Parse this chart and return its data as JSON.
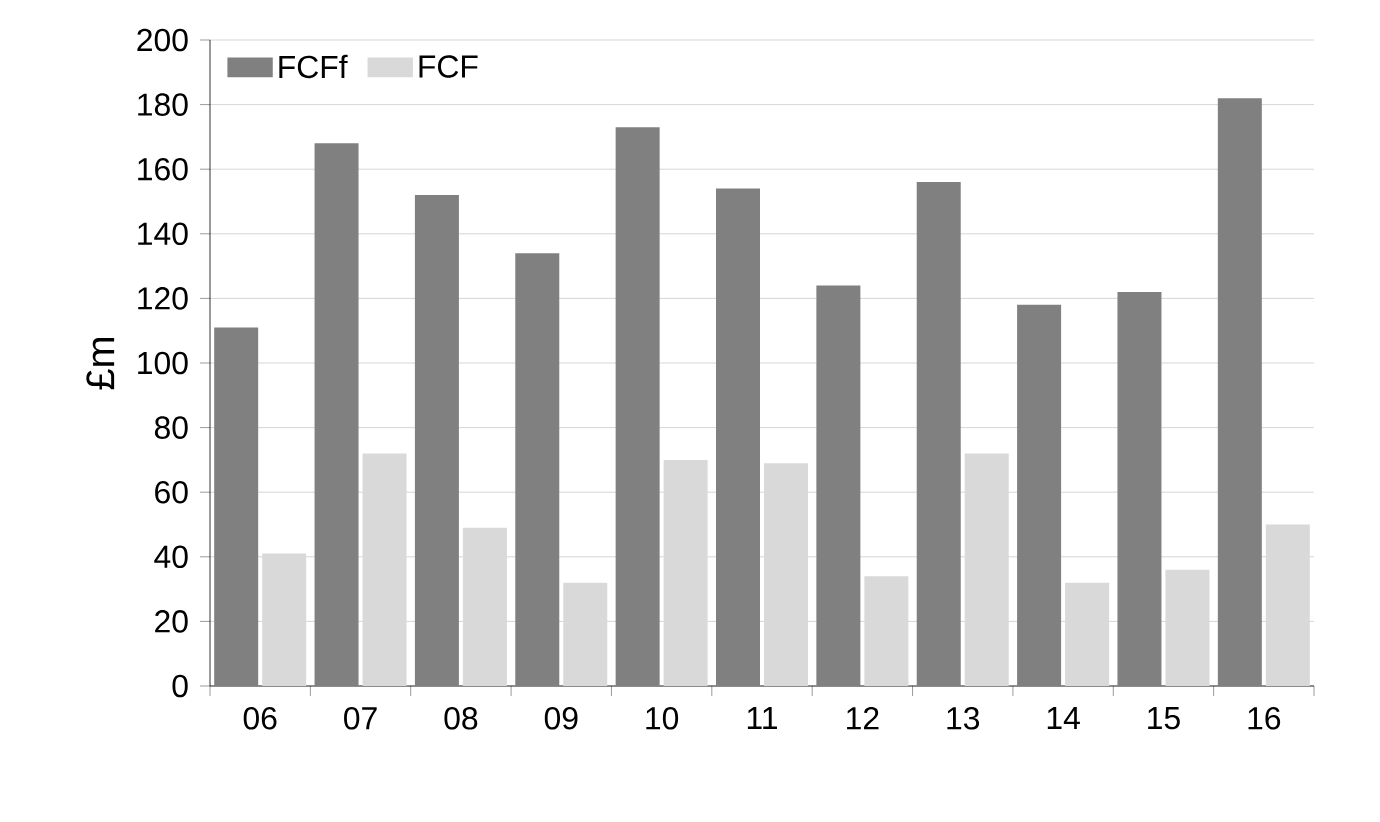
{
  "chart_data": {
    "type": "bar",
    "ylabel": "£m",
    "categories": [
      "06",
      "07",
      "08",
      "09",
      "10",
      "11",
      "12",
      "13",
      "14",
      "15",
      "16"
    ],
    "series": [
      {
        "name": "FCFf",
        "color": "#808080",
        "values": [
          111,
          168,
          152,
          134,
          173,
          154,
          124,
          156,
          118,
          122,
          182
        ]
      },
      {
        "name": "FCF",
        "color": "#d9d9d9",
        "values": [
          41,
          72,
          49,
          32,
          70,
          69,
          34,
          72,
          32,
          36,
          50
        ]
      }
    ],
    "ylim": [
      0,
      200
    ],
    "yticks": [
      0,
      20,
      40,
      60,
      80,
      100,
      120,
      140,
      160,
      180,
      200
    ],
    "grid": "y",
    "legend": "top left"
  }
}
